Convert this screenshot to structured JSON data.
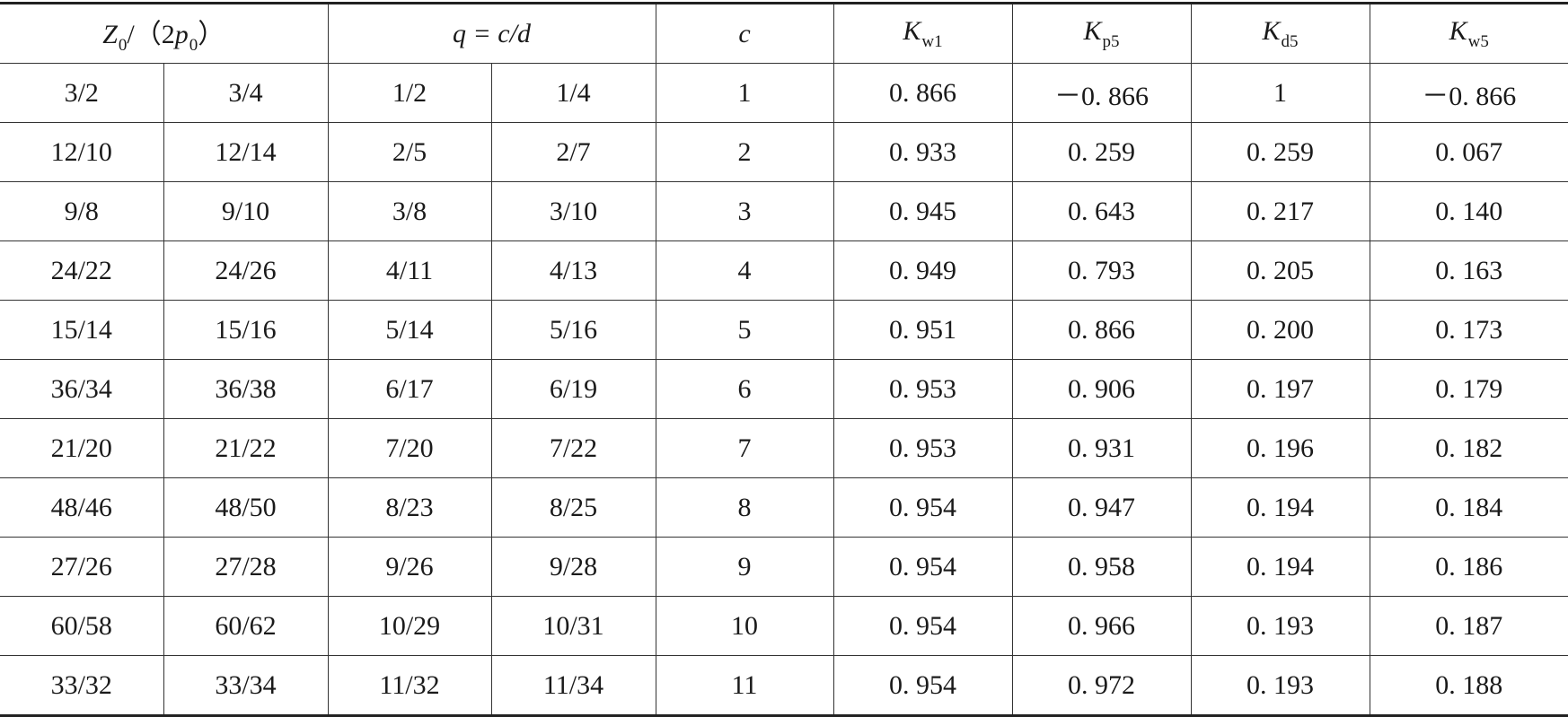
{
  "header": {
    "z_ratio": {
      "main": "Z",
      "sub1": "0",
      "mid": "/（2",
      "var": "p",
      "sub2": "0",
      "end": "）"
    },
    "q_label": "q = c/d",
    "c_label": "c",
    "kw1": {
      "main": "K",
      "sub": "w1"
    },
    "kp5": {
      "main": "K",
      "sub": "p5"
    },
    "kd5": {
      "main": "K",
      "sub": "d5"
    },
    "kw5": {
      "main": "K",
      "sub": "w5"
    }
  },
  "rows": [
    {
      "z1": "3/2",
      "z2": "3/4",
      "q1": "1/2",
      "q2": "1/4",
      "c": "1",
      "kw1": "0. 866",
      "kp5": "－0. 866",
      "kd5": "1",
      "kw5": "－0. 866"
    },
    {
      "z1": "12/10",
      "z2": "12/14",
      "q1": "2/5",
      "q2": "2/7",
      "c": "2",
      "kw1": "0. 933",
      "kp5": "0. 259",
      "kd5": "0. 259",
      "kw5": "0. 067"
    },
    {
      "z1": "9/8",
      "z2": "9/10",
      "q1": "3/8",
      "q2": "3/10",
      "c": "3",
      "kw1": "0. 945",
      "kp5": "0. 643",
      "kd5": "0. 217",
      "kw5": "0. 140"
    },
    {
      "z1": "24/22",
      "z2": "24/26",
      "q1": "4/11",
      "q2": "4/13",
      "c": "4",
      "kw1": "0. 949",
      "kp5": "0. 793",
      "kd5": "0. 205",
      "kw5": "0. 163"
    },
    {
      "z1": "15/14",
      "z2": "15/16",
      "q1": "5/14",
      "q2": "5/16",
      "c": "5",
      "kw1": "0. 951",
      "kp5": "0. 866",
      "kd5": "0. 200",
      "kw5": "0. 173"
    },
    {
      "z1": "36/34",
      "z2": "36/38",
      "q1": "6/17",
      "q2": "6/19",
      "c": "6",
      "kw1": "0. 953",
      "kp5": "0. 906",
      "kd5": "0. 197",
      "kw5": "0. 179"
    },
    {
      "z1": "21/20",
      "z2": "21/22",
      "q1": "7/20",
      "q2": "7/22",
      "c": "7",
      "kw1": "0. 953",
      "kp5": "0. 931",
      "kd5": "0. 196",
      "kw5": "0. 182"
    },
    {
      "z1": "48/46",
      "z2": "48/50",
      "q1": "8/23",
      "q2": "8/25",
      "c": "8",
      "kw1": "0. 954",
      "kp5": "0. 947",
      "kd5": "0. 194",
      "kw5": "0. 184"
    },
    {
      "z1": "27/26",
      "z2": "27/28",
      "q1": "9/26",
      "q2": "9/28",
      "c": "9",
      "kw1": "0. 954",
      "kp5": "0. 958",
      "kd5": "0. 194",
      "kw5": "0. 186"
    },
    {
      "z1": "60/58",
      "z2": "60/62",
      "q1": "10/29",
      "q2": "10/31",
      "c": "10",
      "kw1": "0. 954",
      "kp5": "0. 966",
      "kd5": "0. 193",
      "kw5": "0. 187"
    },
    {
      "z1": "33/32",
      "z2": "33/34",
      "q1": "11/32",
      "q2": "11/34",
      "c": "11",
      "kw1": "0. 954",
      "kp5": "0. 972",
      "kd5": "0. 193",
      "kw5": "0. 188"
    }
  ]
}
